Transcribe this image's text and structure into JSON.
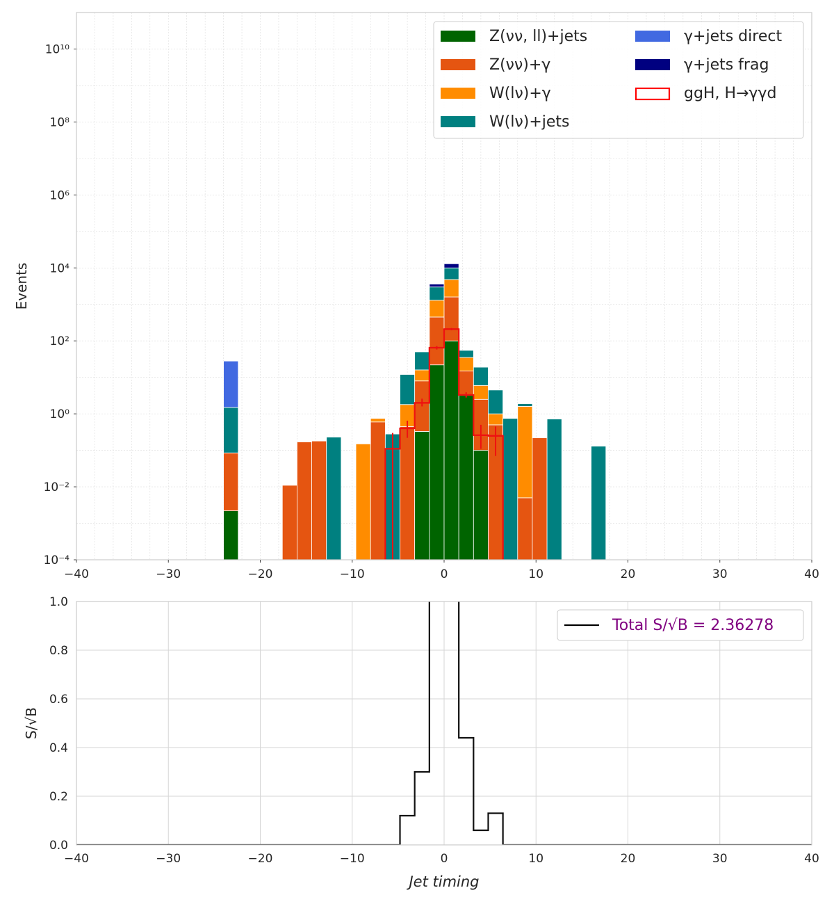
{
  "chart_data": [
    {
      "type": "bar",
      "subtype": "stacked-histogram-log",
      "xlabel": "",
      "ylabel": "Events",
      "xlim": [
        -40,
        40
      ],
      "ylim_log10": [
        -4,
        11
      ],
      "x_ticks": [
        -40,
        -30,
        -20,
        -10,
        0,
        10,
        20,
        30,
        40
      ],
      "x_tick_labels": [
        "−40",
        "−30",
        "−20",
        "−10",
        "0",
        "10",
        "20",
        "30",
        "40"
      ],
      "y_tick_exponents": [
        -4,
        -2,
        0,
        2,
        4,
        6,
        8,
        10
      ],
      "y_tick_labels": [
        "10⁻⁴",
        "10⁻²",
        "10⁰",
        "10²",
        "10⁴",
        "10⁶",
        "10⁸",
        "10¹⁰"
      ],
      "grid": true,
      "legend_position": "top-right",
      "legend": [
        {
          "label": "Z(νν, ll)+jets",
          "color": "#006400",
          "style": "filled"
        },
        {
          "label": "Z(νν)+γ",
          "color": "#e55511",
          "style": "filled"
        },
        {
          "label": "W(lν)+γ",
          "color": "#ff8c00",
          "style": "filled"
        },
        {
          "label": "W(lν)+jets",
          "color": "#008080",
          "style": "filled"
        },
        {
          "label": "γ+jets direct",
          "color": "#4169e1",
          "style": "filled"
        },
        {
          "label": "γ+jets frag",
          "color": "#000080",
          "style": "filled"
        },
        {
          "label": "ggH, H→γγd",
          "color": "#ff0000",
          "style": "outline"
        }
      ],
      "bin_edges_step": 1.6,
      "bin_start": -40,
      "stack_order": [
        "Z(νν, ll)+jets",
        "Z(νν)+γ",
        "W(lν)+γ",
        "W(lν)+jets",
        "γ+jets direct",
        "γ+jets frag"
      ],
      "stacked_bins": [
        {
          "x_low": -24.0,
          "x_high": -22.4,
          "cumulative": [
            0.0022,
            0.085,
            0.085,
            1.5,
            28,
            28
          ]
        },
        {
          "x_low": -17.6,
          "x_high": -16.0,
          "cumulative": [
            0,
            0.011,
            0.011,
            0.011,
            0.011,
            0.011
          ]
        },
        {
          "x_low": -16.0,
          "x_high": -14.4,
          "cumulative": [
            0,
            0.17,
            0.17,
            0.17,
            0.17,
            0.17
          ]
        },
        {
          "x_low": -14.4,
          "x_high": -12.8,
          "cumulative": [
            0,
            0.18,
            0.18,
            0.18,
            0.18,
            0.18
          ]
        },
        {
          "x_low": -12.8,
          "x_high": -11.2,
          "cumulative": [
            0,
            0,
            0,
            0.23,
            0.23,
            0.23
          ]
        },
        {
          "x_low": -9.6,
          "x_high": -8.0,
          "cumulative": [
            0,
            0,
            0.15,
            0.15,
            0.15,
            0.15
          ]
        },
        {
          "x_low": -8.0,
          "x_high": -6.4,
          "cumulative": [
            0,
            0.6,
            0.75,
            0.75,
            0.75,
            0.75
          ]
        },
        {
          "x_low": -6.4,
          "x_high": -4.8,
          "cumulative": [
            0,
            0,
            0,
            0.28,
            0.28,
            0.28
          ]
        },
        {
          "x_low": -4.8,
          "x_high": -3.2,
          "cumulative": [
            0,
            0.45,
            1.8,
            12,
            12,
            12
          ]
        },
        {
          "x_low": -3.2,
          "x_high": -1.6,
          "cumulative": [
            0.33,
            8,
            16,
            50,
            50,
            50
          ]
        },
        {
          "x_low": -1.6,
          "x_high": 0.0,
          "cumulative": [
            22,
            450,
            1300,
            3000,
            3000,
            3600
          ]
        },
        {
          "x_low": 0.0,
          "x_high": 1.6,
          "cumulative": [
            100,
            1600,
            4800,
            10000,
            10000,
            13000
          ]
        },
        {
          "x_low": 1.6,
          "x_high": 3.2,
          "cumulative": [
            3.2,
            15,
            35,
            55,
            55,
            55
          ]
        },
        {
          "x_low": 3.2,
          "x_high": 4.8,
          "cumulative": [
            0.1,
            2.5,
            6,
            19,
            19,
            19
          ]
        },
        {
          "x_low": 4.8,
          "x_high": 6.4,
          "cumulative": [
            0,
            0.5,
            1.0,
            4.5,
            4.5,
            4.5
          ]
        },
        {
          "x_low": 6.4,
          "x_high": 8.0,
          "cumulative": [
            0,
            0,
            0,
            0.75,
            0.75,
            0.75
          ]
        },
        {
          "x_low": 8.0,
          "x_high": 9.6,
          "cumulative": [
            0,
            0.005,
            1.6,
            1.9,
            1.9,
            1.9
          ]
        },
        {
          "x_low": 9.6,
          "x_high": 11.2,
          "cumulative": [
            0,
            0.22,
            0.22,
            0.22,
            0.22,
            0.22
          ]
        },
        {
          "x_low": 11.2,
          "x_high": 12.8,
          "cumulative": [
            0,
            0,
            0,
            0.72,
            0.72,
            0.72
          ]
        },
        {
          "x_low": 16.0,
          "x_high": 17.6,
          "cumulative": [
            0,
            0,
            0,
            0.13,
            0.13,
            0.13
          ]
        }
      ],
      "signal": {
        "name": "ggH, H→γγd",
        "bins": [
          {
            "x_low": -6.4,
            "x_high": -4.8,
            "value": 0.11,
            "err_low": 0.0001,
            "err_high": 0.3
          },
          {
            "x_low": -4.8,
            "x_high": -3.2,
            "value": 0.4,
            "err_low": 0.22,
            "err_high": 0.65
          },
          {
            "x_low": -3.2,
            "x_high": -1.6,
            "value": 2.0,
            "err_low": 1.6,
            "err_high": 2.6
          },
          {
            "x_low": -1.6,
            "x_high": 0.0,
            "value": 65,
            "err_low": 58,
            "err_high": 72
          },
          {
            "x_low": 0.0,
            "x_high": 1.6,
            "value": 210,
            "err_low": 195,
            "err_high": 225
          },
          {
            "x_low": 1.6,
            "x_high": 3.2,
            "value": 3.3,
            "err_low": 2.8,
            "err_high": 3.9
          },
          {
            "x_low": 3.2,
            "x_high": 4.8,
            "value": 0.26,
            "err_low": 0.11,
            "err_high": 0.5
          },
          {
            "x_low": 4.8,
            "x_high": 6.4,
            "value": 0.25,
            "err_low": 0.07,
            "err_high": 0.45
          }
        ]
      }
    },
    {
      "type": "line",
      "subtype": "step",
      "xlabel": "Jet timing",
      "ylabel": "S/√B",
      "xlim": [
        -40,
        40
      ],
      "ylim": [
        0,
        1
      ],
      "x_ticks": [
        -40,
        -30,
        -20,
        -10,
        0,
        10,
        20,
        30,
        40
      ],
      "x_tick_labels": [
        "−40",
        "−30",
        "−20",
        "−10",
        "0",
        "10",
        "20",
        "30",
        "40"
      ],
      "y_ticks": [
        0,
        0.2,
        0.4,
        0.6,
        0.8,
        1.0
      ],
      "y_tick_labels": [
        "0.0",
        "0.2",
        "0.4",
        "0.6",
        "0.8",
        "1.0"
      ],
      "grid": true,
      "legend_position": "top-right",
      "legend": [
        {
          "label": "Total S/√B = 2.36278",
          "line_color": "#000000",
          "text_color": "#800080"
        }
      ],
      "step_edges": [
        -40,
        -4.8,
        -3.2,
        -1.6,
        0.0,
        1.6,
        3.2,
        4.8,
        6.4,
        40
      ],
      "step_values": [
        0,
        0.12,
        0.3,
        1.19,
        2.1,
        0.44,
        0.06,
        0.13,
        0
      ]
    }
  ]
}
